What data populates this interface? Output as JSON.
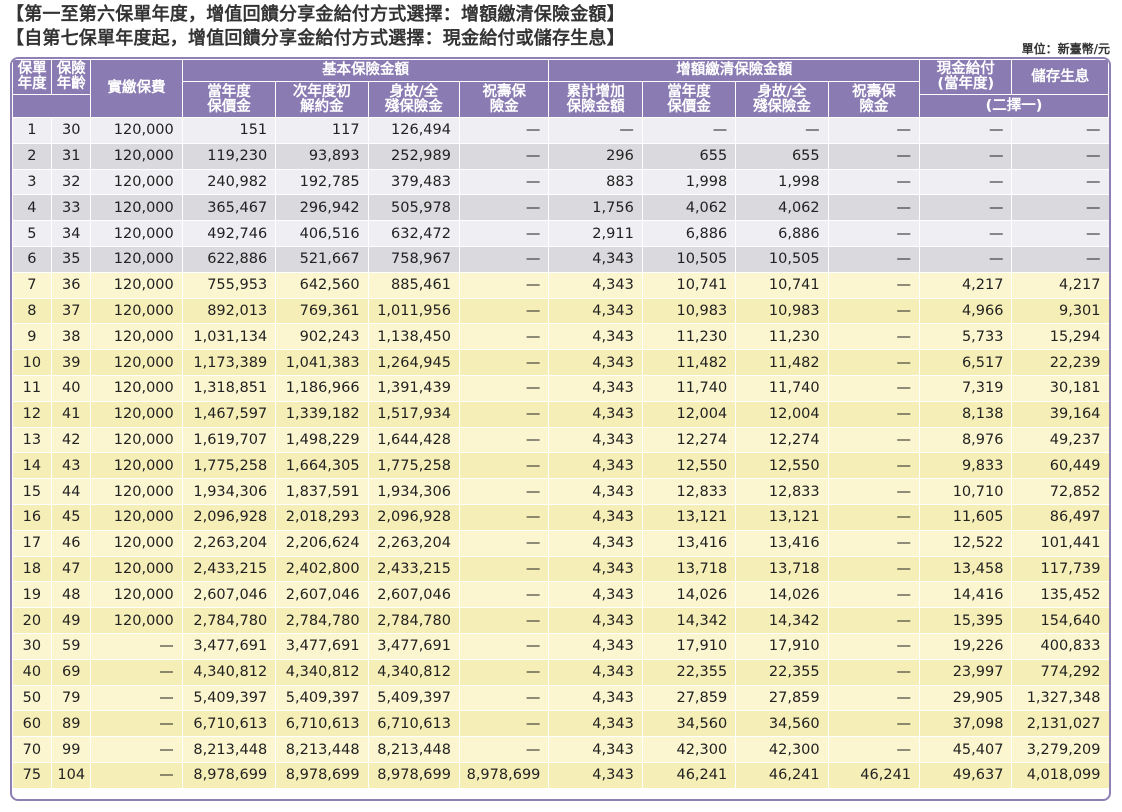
{
  "title_line1": "【第一至第六保單年度，增值回饋分享金給付方式選擇：增額繳清保險金額】",
  "title_line2": "【自第七保單年度起，增值回饋分享金給付方式選擇：現金給付或儲存生息】",
  "unit": "單位：新臺幣/元",
  "headers": {
    "year": "保單年度",
    "age": "保險年齡",
    "premium": "實繳保費",
    "basic_group": "基本保險金額",
    "basic_cv": "當年度保價金",
    "basic_surrender": "次年度初解約金",
    "basic_death": "身故/全殘保險金",
    "basic_birthday": "祝壽保險金",
    "add_group": "增額繳清保險金額",
    "add_cum": "累計增加保險金額",
    "add_cv": "當年度保價金",
    "add_death": "身故/全殘保險金",
    "add_birthday": "祝壽保險金",
    "cash": "現金給付(當年度)",
    "deposit": "儲存生息",
    "choose": "(二擇一)"
  },
  "colors": {
    "header_bg": "#8a7bb3",
    "row_light_gray": "#efeff3",
    "row_gray": "#d9d9de",
    "row_yellow": "#fbf6cf",
    "row_yellow_alt": "#f6eeb7"
  },
  "rows": [
    [
      "1",
      "30",
      "120,000",
      "151",
      "117",
      "126,494",
      "—",
      "—",
      "—",
      "—",
      "—",
      "—",
      "—"
    ],
    [
      "2",
      "31",
      "120,000",
      "119,230",
      "93,893",
      "252,989",
      "—",
      "296",
      "655",
      "655",
      "—",
      "—",
      "—"
    ],
    [
      "3",
      "32",
      "120,000",
      "240,982",
      "192,785",
      "379,483",
      "—",
      "883",
      "1,998",
      "1,998",
      "—",
      "—",
      "—"
    ],
    [
      "4",
      "33",
      "120,000",
      "365,467",
      "296,942",
      "505,978",
      "—",
      "1,756",
      "4,062",
      "4,062",
      "—",
      "—",
      "—"
    ],
    [
      "5",
      "34",
      "120,000",
      "492,746",
      "406,516",
      "632,472",
      "—",
      "2,911",
      "6,886",
      "6,886",
      "—",
      "—",
      "—"
    ],
    [
      "6",
      "35",
      "120,000",
      "622,886",
      "521,667",
      "758,967",
      "—",
      "4,343",
      "10,505",
      "10,505",
      "—",
      "—",
      "—"
    ],
    [
      "7",
      "36",
      "120,000",
      "755,953",
      "642,560",
      "885,461",
      "—",
      "4,343",
      "10,741",
      "10,741",
      "—",
      "4,217",
      "4,217"
    ],
    [
      "8",
      "37",
      "120,000",
      "892,013",
      "769,361",
      "1,011,956",
      "—",
      "4,343",
      "10,983",
      "10,983",
      "—",
      "4,966",
      "9,301"
    ],
    [
      "9",
      "38",
      "120,000",
      "1,031,134",
      "902,243",
      "1,138,450",
      "—",
      "4,343",
      "11,230",
      "11,230",
      "—",
      "5,733",
      "15,294"
    ],
    [
      "10",
      "39",
      "120,000",
      "1,173,389",
      "1,041,383",
      "1,264,945",
      "—",
      "4,343",
      "11,482",
      "11,482",
      "—",
      "6,517",
      "22,239"
    ],
    [
      "11",
      "40",
      "120,000",
      "1,318,851",
      "1,186,966",
      "1,391,439",
      "—",
      "4,343",
      "11,740",
      "11,740",
      "—",
      "7,319",
      "30,181"
    ],
    [
      "12",
      "41",
      "120,000",
      "1,467,597",
      "1,339,182",
      "1,517,934",
      "—",
      "4,343",
      "12,004",
      "12,004",
      "—",
      "8,138",
      "39,164"
    ],
    [
      "13",
      "42",
      "120,000",
      "1,619,707",
      "1,498,229",
      "1,644,428",
      "—",
      "4,343",
      "12,274",
      "12,274",
      "—",
      "8,976",
      "49,237"
    ],
    [
      "14",
      "43",
      "120,000",
      "1,775,258",
      "1,664,305",
      "1,775,258",
      "—",
      "4,343",
      "12,550",
      "12,550",
      "—",
      "9,833",
      "60,449"
    ],
    [
      "15",
      "44",
      "120,000",
      "1,934,306",
      "1,837,591",
      "1,934,306",
      "—",
      "4,343",
      "12,833",
      "12,833",
      "—",
      "10,710",
      "72,852"
    ],
    [
      "16",
      "45",
      "120,000",
      "2,096,928",
      "2,018,293",
      "2,096,928",
      "—",
      "4,343",
      "13,121",
      "13,121",
      "—",
      "11,605",
      "86,497"
    ],
    [
      "17",
      "46",
      "120,000",
      "2,263,204",
      "2,206,624",
      "2,263,204",
      "—",
      "4,343",
      "13,416",
      "13,416",
      "—",
      "12,522",
      "101,441"
    ],
    [
      "18",
      "47",
      "120,000",
      "2,433,215",
      "2,402,800",
      "2,433,215",
      "—",
      "4,343",
      "13,718",
      "13,718",
      "—",
      "13,458",
      "117,739"
    ],
    [
      "19",
      "48",
      "120,000",
      "2,607,046",
      "2,607,046",
      "2,607,046",
      "—",
      "4,343",
      "14,026",
      "14,026",
      "—",
      "14,416",
      "135,452"
    ],
    [
      "20",
      "49",
      "120,000",
      "2,784,780",
      "2,784,780",
      "2,784,780",
      "—",
      "4,343",
      "14,342",
      "14,342",
      "—",
      "15,395",
      "154,640"
    ],
    [
      "30",
      "59",
      "—",
      "3,477,691",
      "3,477,691",
      "3,477,691",
      "—",
      "4,343",
      "17,910",
      "17,910",
      "—",
      "19,226",
      "400,833"
    ],
    [
      "40",
      "69",
      "—",
      "4,340,812",
      "4,340,812",
      "4,340,812",
      "—",
      "4,343",
      "22,355",
      "22,355",
      "—",
      "23,997",
      "774,292"
    ],
    [
      "50",
      "79",
      "—",
      "5,409,397",
      "5,409,397",
      "5,409,397",
      "—",
      "4,343",
      "27,859",
      "27,859",
      "—",
      "29,905",
      "1,327,348"
    ],
    [
      "60",
      "89",
      "—",
      "6,710,613",
      "6,710,613",
      "6,710,613",
      "—",
      "4,343",
      "34,560",
      "34,560",
      "—",
      "37,098",
      "2,131,027"
    ],
    [
      "70",
      "99",
      "—",
      "8,213,448",
      "8,213,448",
      "8,213,448",
      "—",
      "4,343",
      "42,300",
      "42,300",
      "—",
      "45,407",
      "3,279,209"
    ],
    [
      "75",
      "104",
      "—",
      "8,978,699",
      "8,978,699",
      "8,978,699",
      "8,978,699",
      "4,343",
      "46,241",
      "46,241",
      "46,241",
      "49,637",
      "4,018,099"
    ]
  ]
}
